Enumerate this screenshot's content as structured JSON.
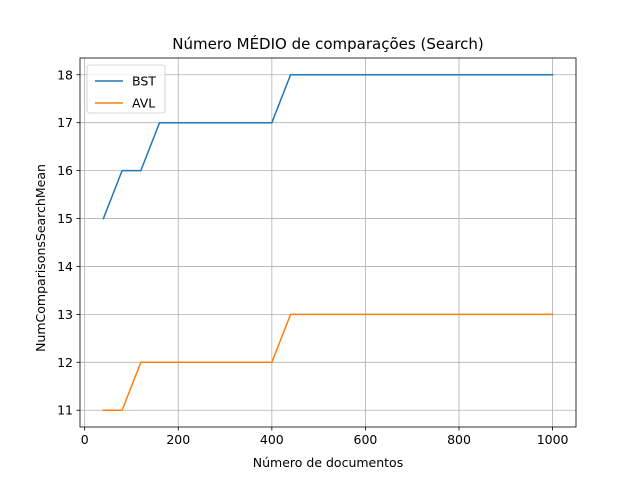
{
  "chart_data": {
    "type": "line",
    "title": "Número MÉDIO de comparações (Search)",
    "xlabel": "Número de documentos",
    "ylabel": "NumComparisonsSearchMean",
    "xlim": [
      -10,
      1050
    ],
    "ylim": [
      10.65,
      18.35
    ],
    "xticks": [
      0,
      200,
      400,
      600,
      800,
      1000
    ],
    "yticks": [
      11,
      12,
      13,
      14,
      15,
      16,
      17,
      18
    ],
    "grid": true,
    "legend_position": "top-left",
    "series": [
      {
        "name": "BST",
        "color": "#1f77b4",
        "x": [
          40,
          80,
          120,
          160,
          200,
          240,
          280,
          320,
          360,
          400,
          440,
          480,
          520,
          560,
          600,
          640,
          680,
          720,
          760,
          800,
          840,
          880,
          920,
          960,
          1000
        ],
        "y": [
          15,
          16,
          16,
          17,
          17,
          17,
          17,
          17,
          17,
          17,
          18,
          18,
          18,
          18,
          18,
          18,
          18,
          18,
          18,
          18,
          18,
          18,
          18,
          18,
          18
        ]
      },
      {
        "name": "AVL",
        "color": "#ff7f0e",
        "x": [
          40,
          80,
          120,
          160,
          200,
          240,
          280,
          320,
          360,
          400,
          440,
          480,
          520,
          560,
          600,
          640,
          680,
          720,
          760,
          800,
          840,
          880,
          920,
          960,
          1000
        ],
        "y": [
          11,
          11,
          12,
          12,
          12,
          12,
          12,
          12,
          12,
          12,
          13,
          13,
          13,
          13,
          13,
          13,
          13,
          13,
          13,
          13,
          13,
          13,
          13,
          13,
          13
        ]
      }
    ]
  }
}
